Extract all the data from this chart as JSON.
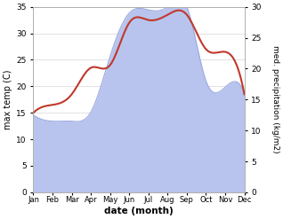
{
  "months": [
    "Jan",
    "Feb",
    "Mar",
    "Apr",
    "May",
    "Jun",
    "Jul",
    "Aug",
    "Sep",
    "Oct",
    "Nov",
    "Dec"
  ],
  "temp": [
    15,
    16.5,
    18.5,
    23.5,
    24,
    32,
    32.5,
    33.5,
    33.5,
    27,
    26.5,
    18.5
  ],
  "precip": [
    12.5,
    11.5,
    11.5,
    13,
    22,
    29,
    29.5,
    30,
    30,
    18,
    17,
    16
  ],
  "temp_color": "#c0392b",
  "precip_fill_color": "#b8c4ee",
  "precip_line_color": "#9aaade",
  "left_ylim": [
    0,
    35
  ],
  "right_ylim": [
    0,
    30
  ],
  "left_yticks": [
    0,
    5,
    10,
    15,
    20,
    25,
    30,
    35
  ],
  "right_yticks": [
    0,
    5,
    10,
    15,
    20,
    25,
    30
  ],
  "xlabel": "date (month)",
  "ylabel_left": "max temp (C)",
  "ylabel_right": "med. precipitation (kg/m2)"
}
